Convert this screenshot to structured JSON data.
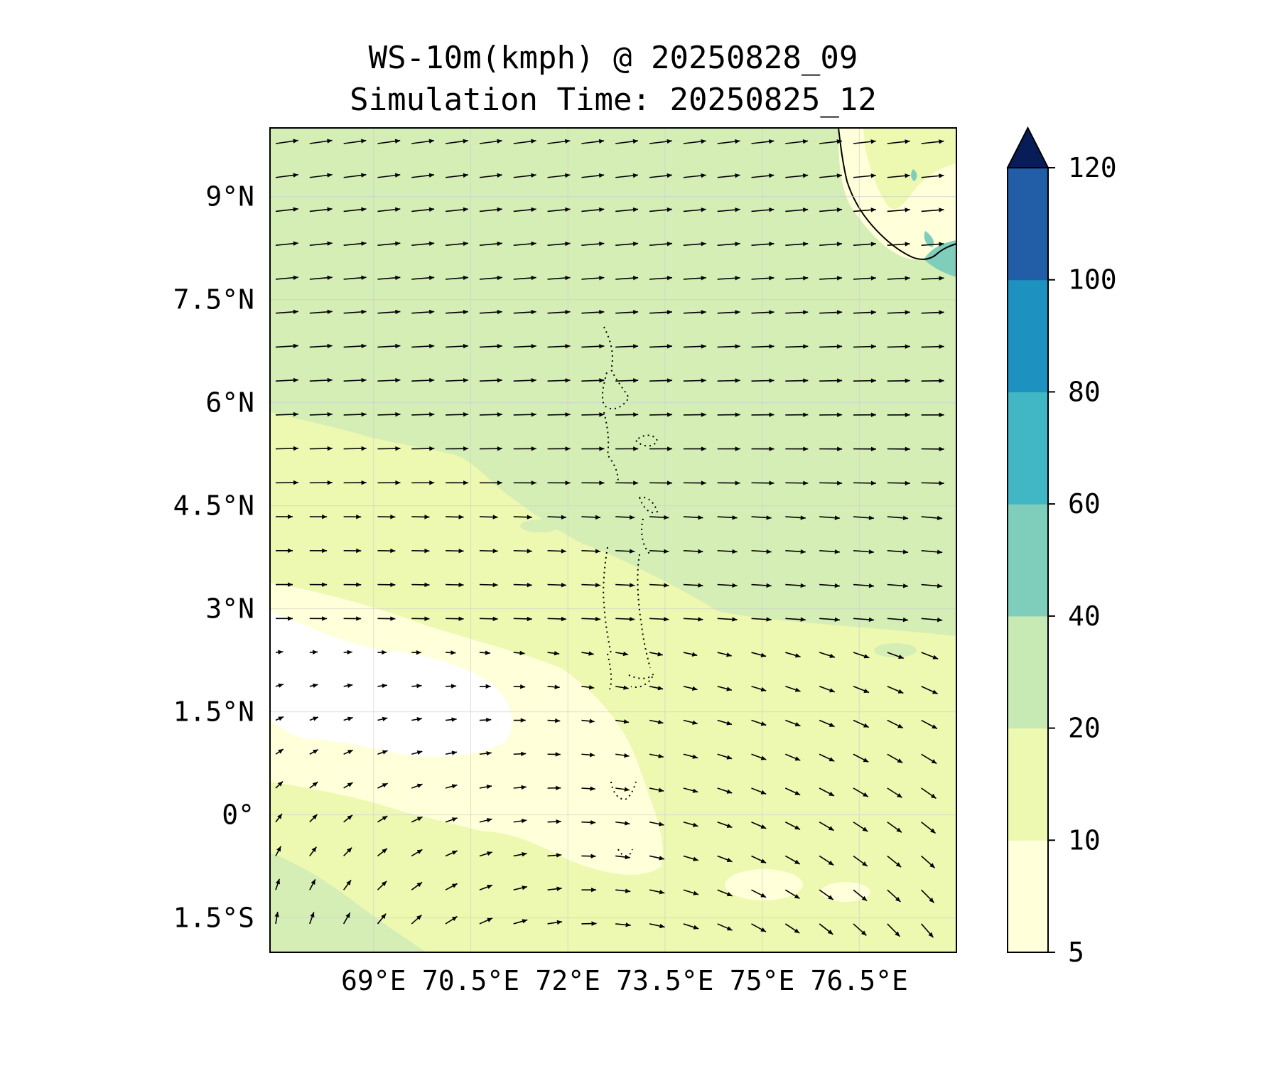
{
  "title": {
    "line1": "WS-10m(kmph) @ 20250828_09",
    "line2": "Simulation Time: 20250825_12"
  },
  "map": {
    "variable": "10 m wind speed",
    "units": "kmph",
    "lon_range": [
      67.4,
      78.0
    ],
    "lat_range": [
      -2.0,
      10.0
    ],
    "x_ticks": [
      {
        "value": 69,
        "label": "69°E"
      },
      {
        "value": 70.5,
        "label": "70.5°E"
      },
      {
        "value": 72,
        "label": "72°E"
      },
      {
        "value": 73.5,
        "label": "73.5°E"
      },
      {
        "value": 75,
        "label": "75°E"
      },
      {
        "value": 76.5,
        "label": "76.5°E"
      }
    ],
    "y_ticks": [
      {
        "value": 9,
        "label": "9°N"
      },
      {
        "value": 7.5,
        "label": "7.5°N"
      },
      {
        "value": 6,
        "label": "6°N"
      },
      {
        "value": 4.5,
        "label": "4.5°N"
      },
      {
        "value": 3,
        "label": "3°N"
      },
      {
        "value": 1.5,
        "label": "1.5°N"
      },
      {
        "value": 0,
        "label": "0°"
      },
      {
        "value": -1.5,
        "label": "1.5°S"
      }
    ],
    "gridlines": true,
    "land": "southern India coastline (top-right)",
    "islands": "Maldives atolls (dotted outlines)"
  },
  "colorbar": {
    "levels": [
      5,
      10,
      20,
      40,
      60,
      80,
      100,
      120
    ],
    "colors": [
      "#ffffd9",
      "#edf8b1",
      "#c7e9b4",
      "#7fcdbb",
      "#41b6c4",
      "#1d91c0",
      "#225ea8",
      "#0c2c84"
    ],
    "extend_color": "#081d58",
    "extend": "max",
    "tick_labels": [
      "5",
      "10",
      "20",
      "40",
      "60",
      "80",
      "100",
      "120"
    ]
  },
  "colors": {
    "white": "#ffffff",
    "very_light": "#ffffd9",
    "light": "#edf8b1",
    "green": "#d4eeb6",
    "teal": "#7fcdbb"
  }
}
